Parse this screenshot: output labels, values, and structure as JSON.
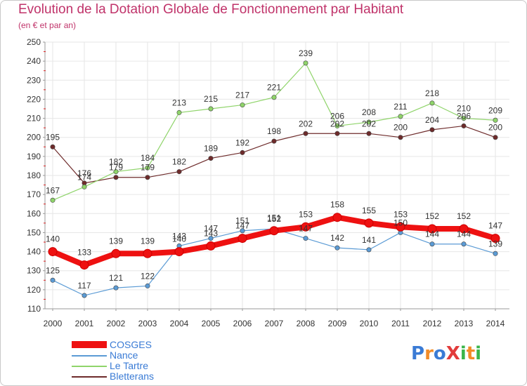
{
  "header": {
    "title": "Evolution de la Dotation Globale de Fonctionnement par Habitant",
    "subtitle": "(en € et par an)"
  },
  "logo": {
    "text": "ProXiti",
    "letters": [
      "P",
      "r",
      "o",
      "X",
      "i",
      "t",
      "i"
    ],
    "colors": [
      "#3a7bd5",
      "#f28c28",
      "#3a7bd5",
      "#e23b3b",
      "#3ab54a",
      "#f28c28",
      "#3ab54a"
    ]
  },
  "chart_data": {
    "type": "line",
    "title": "Evolution de la Dotation Globale de Fonctionnement par Habitant",
    "subtitle": "(en € et par an)",
    "x": [
      "2000",
      "2001",
      "2002",
      "2003",
      "2004",
      "2005",
      "2006",
      "2007",
      "2008",
      "2009",
      "2010",
      "2011",
      "2012",
      "2013",
      "2014"
    ],
    "ylim": [
      110,
      250
    ],
    "yticks": [
      110,
      120,
      130,
      140,
      150,
      160,
      170,
      180,
      190,
      200,
      210,
      220,
      230,
      240,
      250
    ],
    "grid": true,
    "legend_position": "bottom-left",
    "series": [
      {
        "name": "COSGES",
        "color": "#ee1111",
        "values": [
          140,
          133,
          139,
          139,
          140,
          143,
          147,
          151,
          153,
          158,
          155,
          153,
          152,
          152,
          147
        ]
      },
      {
        "name": "Nance",
        "color": "#5b9bd5",
        "values": [
          125,
          117,
          121,
          122,
          143,
          147,
          151,
          152,
          147,
          142,
          141,
          150,
          144,
          144,
          139
        ]
      },
      {
        "name": "Le Tartre",
        "color": "#8fd46a",
        "values": [
          167,
          174,
          182,
          184,
          213,
          215,
          217,
          221,
          239,
          206,
          208,
          211,
          218,
          210,
          209
        ]
      },
      {
        "name": "Bletterans",
        "color": "#6e2b2b",
        "values": [
          195,
          176,
          179,
          179,
          182,
          189,
          192,
          198,
          202,
          202,
          202,
          200,
          204,
          206,
          200
        ]
      }
    ]
  }
}
